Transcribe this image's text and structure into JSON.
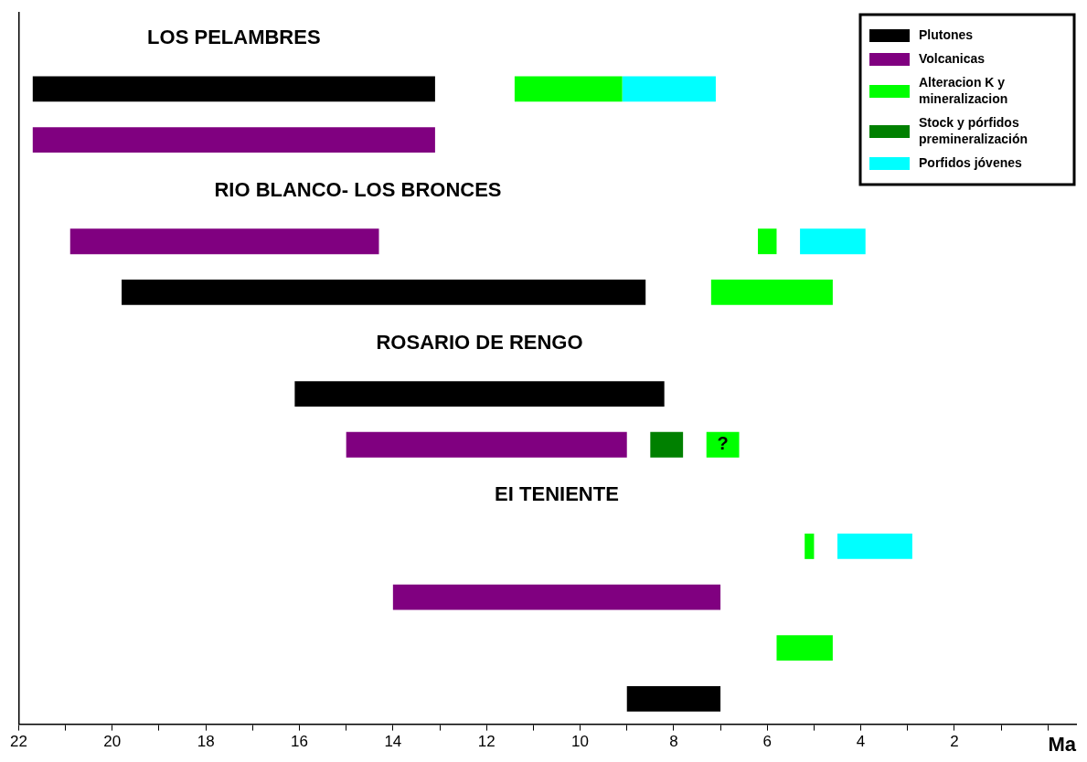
{
  "chart_data": {
    "type": "bar",
    "orientation": "horizontal",
    "xlabel": "Ma",
    "legend": "top right",
    "categories": [
      "LOS PELAMBRES",
      null,
      null,
      "RIO BLANCO- LOS BRONCES",
      null,
      null,
      "ROSARIO DE RENGO",
      null,
      null,
      "EI TENIENTE",
      null,
      null,
      null,
      null
    ],
    "xlim": [
      22,
      -0.6
    ],
    "xticks": [
      22,
      {
        "value": 21,
        "label": null
      },
      20,
      {
        "value": 19,
        "label": null
      },
      18,
      {
        "value": 17,
        "label": null
      },
      16,
      {
        "value": 15,
        "label": null
      },
      14,
      {
        "value": 13,
        "label": null
      },
      12,
      {
        "value": 11,
        "label": null
      },
      10,
      {
        "value": 9,
        "label": null
      },
      8,
      {
        "value": 7,
        "label": null
      },
      6,
      {
        "value": 5,
        "label": null
      },
      4,
      {
        "value": 3,
        "label": null
      },
      2,
      {
        "value": 1,
        "label": null
      },
      {
        "value": 0,
        "label": null
      }
    ],
    "series": [
      {
        "name": "Plutones",
        "color": "#000000",
        "values": [
          null,
          8.6,
          null,
          null,
          null,
          11.2,
          null,
          7.9,
          null,
          null,
          null,
          null,
          null,
          2.0
        ],
        "base": [
          null,
          13.1,
          null,
          null,
          null,
          8.6,
          null,
          8.2,
          null,
          null,
          null,
          null,
          null,
          7.0
        ]
      },
      {
        "name": "Volcanicas",
        "color": "#800080",
        "values": [
          null,
          null,
          8.6,
          null,
          6.6,
          null,
          null,
          null,
          6.0,
          null,
          null,
          7.0,
          null,
          null
        ],
        "base": [
          null,
          null,
          13.1,
          null,
          14.3,
          null,
          null,
          null,
          9.0,
          null,
          null,
          7.0,
          null,
          null
        ]
      },
      {
        "name": "Alteracion K y mineralizacion",
        "color": "#00ff00",
        "values": [
          null,
          2.3,
          null,
          null,
          0.4,
          2.6,
          null,
          null,
          0.7,
          null,
          0.2,
          null,
          1.2,
          null
        ],
        "base": [
          null,
          9.1,
          null,
          null,
          5.8,
          4.6,
          null,
          null,
          6.6,
          null,
          5.0,
          null,
          4.6,
          null
        ],
        "value_labels": [
          null,
          null,
          null,
          null,
          null,
          null,
          null,
          null,
          "?",
          null,
          null,
          null,
          null,
          null
        ]
      },
      {
        "name": "Stock y pórfidos premineralización",
        "color": "#008000",
        "values": [
          null,
          null,
          null,
          null,
          null,
          null,
          null,
          null,
          0.7,
          null,
          null,
          null,
          null,
          null
        ],
        "base": [
          null,
          null,
          null,
          null,
          null,
          null,
          null,
          null,
          7.8,
          null,
          null,
          null,
          null,
          null
        ]
      },
      {
        "name": "Porfidos jóvenes",
        "color": "#00ffff",
        "values": [
          null,
          2.0,
          null,
          null,
          1.4,
          null,
          null,
          null,
          null,
          null,
          1.6,
          null,
          null,
          null
        ],
        "base": [
          null,
          7.1,
          null,
          null,
          3.9,
          null,
          null,
          null,
          null,
          null,
          2.9,
          null,
          null,
          null
        ]
      }
    ]
  }
}
